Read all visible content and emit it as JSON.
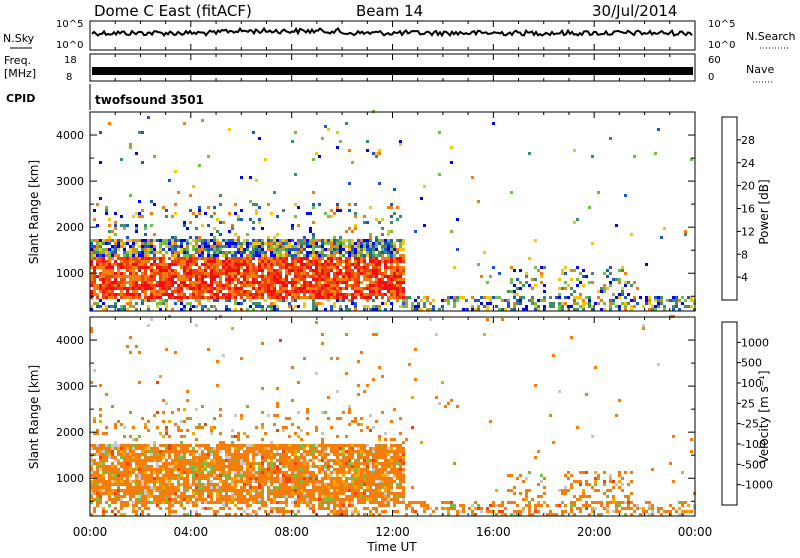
{
  "header": {
    "title": "Dome C East (fitACF)",
    "beam": "Beam 14",
    "date": "30/Jul/2014"
  },
  "aux": {
    "nsky_label": "N.Sky",
    "nsearch_label": "N.Search",
    "freq_label_1": "Freq.",
    "freq_label_2": "[MHz]",
    "nave_label": "Nave",
    "cpid_label": "CPID",
    "cpid_value": "twofsound 3501",
    "nsky_ticks": [
      "10^5",
      "10^0"
    ],
    "nsearch_ticks": [
      "10^5",
      "10^0"
    ],
    "freq_ticks": [
      "18",
      "8"
    ],
    "nave_ticks": [
      "60",
      "0"
    ]
  },
  "colors": {
    "power_scale": [
      "#0000ff",
      "#1d57c8",
      "#3e8e6a",
      "#70c04a",
      "#f2c80c",
      "#f57d0c",
      "#f2440a",
      "#ee1010"
    ],
    "velocity_scale": [
      "#ee1010",
      "#f2440a",
      "#f57d0c",
      "#f5a800",
      "#c8c8c8",
      "#70c04a",
      "#3e8e6a",
      "#1d57c8",
      "#0000ff"
    ]
  },
  "chart_data": [
    {
      "type": "heatmap",
      "panel": "power",
      "ylabel": "Slant Range [km]",
      "ylim": [
        180,
        4500
      ],
      "xlim": [
        0,
        24
      ],
      "yticks": [
        "1000",
        "2000",
        "3000",
        "4000"
      ],
      "colorbar_label": "Power [dB]",
      "colorbar_ticks": [
        "4",
        "8",
        "12",
        "16",
        "20",
        "24",
        "28"
      ],
      "colorbar_range": [
        0,
        32
      ]
    },
    {
      "type": "heatmap",
      "panel": "velocity",
      "ylabel": "Slant Range [km]",
      "ylim": [
        180,
        4500
      ],
      "xlim": [
        0,
        24
      ],
      "yticks": [
        "1000",
        "2000",
        "3000",
        "4000"
      ],
      "colorbar_label": "Velocity [m s⁻¹]",
      "colorbar_ticks": [
        "1000",
        "500",
        "100",
        "25",
        "-25",
        "-100",
        "-500",
        "-1000"
      ]
    }
  ],
  "xaxis": {
    "ticks": [
      "00:00",
      "04:00",
      "08:00",
      "12:00",
      "16:00",
      "20:00",
      "00:00"
    ],
    "label": "Time UT"
  }
}
